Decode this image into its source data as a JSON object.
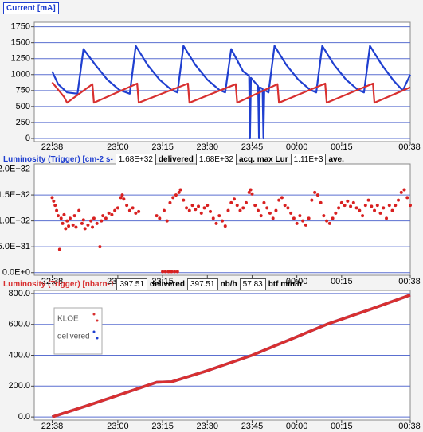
{
  "chart_data": [
    {
      "type": "line",
      "title": "Current [mA]",
      "title_color": "#1f3fd0",
      "title_boxed": true,
      "grid": true,
      "xlim": [
        1352,
        1478
      ],
      "ylim": [
        -50,
        1820
      ],
      "xticks": [
        {
          "value": 1358,
          "label": "22:38"
        },
        {
          "value": 1380,
          "label": "23:00"
        },
        {
          "value": 1395,
          "label": "23:15"
        },
        {
          "value": 1410,
          "label": "23:30"
        },
        {
          "value": 1425,
          "label": "23:45"
        },
        {
          "value": 1440,
          "label": "00:00"
        },
        {
          "value": 1455,
          "label": "00:15"
        },
        {
          "value": 1478,
          "label": "00:38"
        }
      ],
      "yticks": [
        0,
        250,
        500,
        750,
        1000,
        1250,
        1500,
        1750
      ],
      "series": [
        {
          "color": "#1f3fd0",
          "x": [
            1358,
            1360,
            1363,
            1366.5,
            1368.5,
            1372.5,
            1376.5,
            1380.5,
            1384,
            1386,
            1390,
            1394,
            1398,
            1400,
            1402,
            1406,
            1410,
            1414,
            1416,
            1418,
            1422,
            1424,
            1424.3,
            1424.6,
            1427,
            1427.3,
            1427.6,
            1428.5,
            1428.8,
            1429.1,
            1430.5,
            1432.5,
            1436.5,
            1440.5,
            1444.5,
            1446.5,
            1448.5,
            1452.5,
            1456.5,
            1460.5,
            1462.5,
            1464.5,
            1468.5,
            1472.5,
            1475.5,
            1478
          ],
          "values": [
            1050,
            850,
            720,
            700,
            1400,
            1150,
            920,
            760,
            700,
            1450,
            1150,
            920,
            760,
            720,
            1450,
            1150,
            920,
            760,
            720,
            1400,
            1050,
            980,
            0,
            950,
            820,
            0,
            800,
            780,
            0,
            760,
            720,
            1450,
            1150,
            920,
            760,
            720,
            1450,
            1150,
            920,
            760,
            720,
            1450,
            1150,
            900,
            750,
            1000
          ]
        },
        {
          "color": "#d83030",
          "x": [
            1358,
            1362,
            1363,
            1371.5,
            1372,
            1386.5,
            1387,
            1403.5,
            1404,
            1419.5,
            1420,
            1433.5,
            1434,
            1449.5,
            1450,
            1465.5,
            1466,
            1478
          ],
          "values": [
            880,
            650,
            560,
            850,
            560,
            860,
            560,
            860,
            560,
            850,
            560,
            850,
            560,
            860,
            560,
            860,
            560,
            800
          ]
        }
      ]
    },
    {
      "type": "scatter",
      "title": "Luminosity (Trigger) [cm-2 s-",
      "title_color": "#1f3fd0",
      "title_boxed": false,
      "grid": true,
      "readouts": [
        {
          "text": "1.68E+32",
          "boxed": true
        },
        {
          "text": "delivered",
          "boxed": false
        },
        {
          "text": "1.68E+32",
          "boxed": true
        },
        {
          "text": "acq. max Lur",
          "boxed": false
        },
        {
          "text": "1.11E+3",
          "boxed": true
        },
        {
          "text": "ave.",
          "boxed": false
        }
      ],
      "xlim": [
        1352,
        1478
      ],
      "ylim": [
        -5e+30,
        2.1e+32
      ],
      "xticks": [
        {
          "value": 1358,
          "label": "22:38"
        },
        {
          "value": 1380,
          "label": "23:00"
        },
        {
          "value": 1395,
          "label": "23:15"
        },
        {
          "value": 1410,
          "label": "23:30"
        },
        {
          "value": 1425,
          "label": "23:45"
        },
        {
          "value": 1440,
          "label": "00:00"
        },
        {
          "value": 1455,
          "label": "00:15"
        },
        {
          "value": 1478,
          "label": "00:38"
        }
      ],
      "yticks": [
        {
          "value": 0,
          "label": "0.0E+0"
        },
        {
          "value": 5e+31,
          "label": "5.0E+31"
        },
        {
          "value": 1e+32,
          "label": "1.0E+32"
        },
        {
          "value": 1.5e+32,
          "label": "1.5E+32"
        },
        {
          "value": 2e+32,
          "label": "2.0E+32"
        }
      ],
      "series": [
        {
          "color": "#d82020",
          "x": [
            1358,
            1358.5,
            1359,
            1359.5,
            1360,
            1360.5,
            1361,
            1361.5,
            1362,
            1362.5,
            1363,
            1363.5,
            1364,
            1365,
            1365.5,
            1366,
            1367,
            1368,
            1368.5,
            1369,
            1370,
            1371,
            1371.5,
            1372,
            1373,
            1374,
            1374.5,
            1375,
            1376,
            1377,
            1378,
            1379,
            1380,
            1381,
            1381.5,
            1382,
            1383,
            1384,
            1385,
            1386,
            1387,
            1395,
            1396,
            1397,
            1398,
            1399,
            1400,
            1393,
            1394,
            1395.5,
            1396.5,
            1397.5,
            1398.5,
            1399.5,
            1400.5,
            1401,
            1402,
            1403,
            1404,
            1405,
            1406,
            1407,
            1408,
            1409,
            1410,
            1411,
            1412,
            1413,
            1414,
            1415,
            1416,
            1417,
            1418,
            1419,
            1420,
            1421,
            1422,
            1423,
            1424,
            1424.5,
            1425,
            1426,
            1427,
            1428,
            1429,
            1430,
            1431,
            1432,
            1433,
            1434,
            1435,
            1436,
            1437,
            1438,
            1439,
            1440,
            1441,
            1442,
            1443,
            1444,
            1445,
            1446,
            1447,
            1448,
            1449,
            1450,
            1451,
            1452,
            1453,
            1454,
            1455,
            1456,
            1457,
            1458,
            1459,
            1460,
            1461,
            1462,
            1463,
            1464,
            1465,
            1466,
            1467,
            1468,
            1469,
            1470,
            1471,
            1472,
            1473,
            1474,
            1475,
            1476,
            1477,
            1478
          ],
          "values": [
            1.45e+32,
            1.38e+32,
            1.3e+32,
            1.2e+32,
            1.1e+32,
            4.5e+31,
            1.05e+32,
            9.5e+31,
            1.12e+32,
            8.5e+31,
            1e+32,
            9e+31,
            1.05e+32,
            9.2e+31,
            1.1e+32,
            8.8e+31,
            1.2e+32,
            9.5e+31,
            1.02e+32,
            8.5e+31,
            9.2e+31,
            1e+32,
            8.8e+31,
            1.05e+32,
            9.5e+31,
            5e+31,
            1e+32,
            1.1e+32,
            1.05e+32,
            1.15e+32,
            1.12e+32,
            1.2e+32,
            1.25e+32,
            1.45e+32,
            1.5e+32,
            1.42e+32,
            1.3e+32,
            1.2e+32,
            1.25e+32,
            1.15e+32,
            1.18e+32,
            2e+30,
            2e+30,
            2e+30,
            2e+30,
            2e+30,
            2e+30,
            1.1e+32,
            1.05e+32,
            1.2e+32,
            1e+32,
            1.35e+32,
            1.45e+32,
            1.5e+32,
            1.55e+32,
            1.6e+32,
            1.4e+32,
            1.25e+32,
            1.2e+32,
            1.3e+32,
            1.22e+32,
            1.28e+32,
            1.15e+32,
            1.25e+32,
            1.3e+32,
            1.18e+32,
            1.05e+32,
            9.5e+31,
            1.1e+32,
            1e+32,
            9e+31,
            1.2e+32,
            1.35e+32,
            1.42e+32,
            1.3e+32,
            1.2e+32,
            1.25e+32,
            1.35e+32,
            1.55e+32,
            1.6e+32,
            1.52e+32,
            1.3e+32,
            1.2e+32,
            1.1e+32,
            1.35e+32,
            1.25e+32,
            1.15e+32,
            1.05e+32,
            1.2e+32,
            1.4e+32,
            1.45e+32,
            1.3e+32,
            1.25e+32,
            1.15e+32,
            1.05e+32,
            9.5e+31,
            1.1e+32,
            1e+32,
            9.2e+31,
            1.05e+32,
            1.4e+32,
            1.55e+32,
            1.5e+32,
            1.35e+32,
            1.1e+32,
            1e+32,
            9.5e+31,
            1.05e+32,
            1.15e+32,
            1.25e+32,
            1.35e+32,
            1.3e+32,
            1.38e+32,
            1.28e+32,
            1.35e+32,
            1.25e+32,
            1.2e+32,
            1.1e+32,
            1.3e+32,
            1.4e+32,
            1.28e+32,
            1.2e+32,
            1.3e+32,
            1.15e+32,
            1.25e+32,
            1.05e+32,
            1.3e+32,
            1.2e+32,
            1.3e+32,
            1.4e+32,
            1.55e+32,
            1.6e+32,
            1.45e+32,
            1.3e+32
          ]
        }
      ]
    },
    {
      "type": "line",
      "title": "Luminosity (Trigger) [nbarn-1",
      "title_color": "#d83030",
      "title_boxed": false,
      "grid": true,
      "legend": "top-left",
      "readouts": [
        {
          "text": "397.51",
          "boxed": true
        },
        {
          "text": "delivered",
          "boxed": false
        },
        {
          "text": "397.51",
          "boxed": true
        },
        {
          "text": "nb/h",
          "boxed": false
        },
        {
          "text": "57.83",
          "boxed": true
        },
        {
          "text": "btf min/h",
          "boxed": false
        }
      ],
      "xlim": [
        1352,
        1478
      ],
      "ylim": [
        -20,
        820
      ],
      "xticks": [
        {
          "value": 1358,
          "label": "22:38"
        },
        {
          "value": 1380,
          "label": "23:00"
        },
        {
          "value": 1395,
          "label": "23:15"
        },
        {
          "value": 1410,
          "label": "23:30"
        },
        {
          "value": 1425,
          "label": "23:45"
        },
        {
          "value": 1440,
          "label": "00:00"
        },
        {
          "value": 1455,
          "label": "00:15"
        },
        {
          "value": 1478,
          "label": "00:38"
        }
      ],
      "yticks": [
        {
          "value": 0,
          "label": "0.0"
        },
        {
          "value": 200,
          "label": "200.0"
        },
        {
          "value": 400,
          "label": "400.0"
        },
        {
          "value": 600,
          "label": "600.0"
        },
        {
          "value": 800,
          "label": "800.0"
        }
      ],
      "series": [
        {
          "name": "delivered",
          "color": "#1f3fd0",
          "x": [
            1358,
            1370,
            1380,
            1390,
            1393,
            1398,
            1410,
            1425,
            1440,
            1450,
            1465,
            1478
          ],
          "values": [
            0,
            75,
            140,
            205,
            225,
            228,
            300,
            400,
            520,
            600,
            700,
            790
          ]
        },
        {
          "name": "KLOE",
          "color": "#d83030",
          "x": [
            1358,
            1370,
            1380,
            1390,
            1393,
            1398,
            1410,
            1425,
            1440,
            1450,
            1465,
            1478
          ],
          "values": [
            0,
            75,
            140,
            205,
            225,
            228,
            300,
            400,
            520,
            600,
            700,
            790
          ]
        }
      ]
    }
  ]
}
